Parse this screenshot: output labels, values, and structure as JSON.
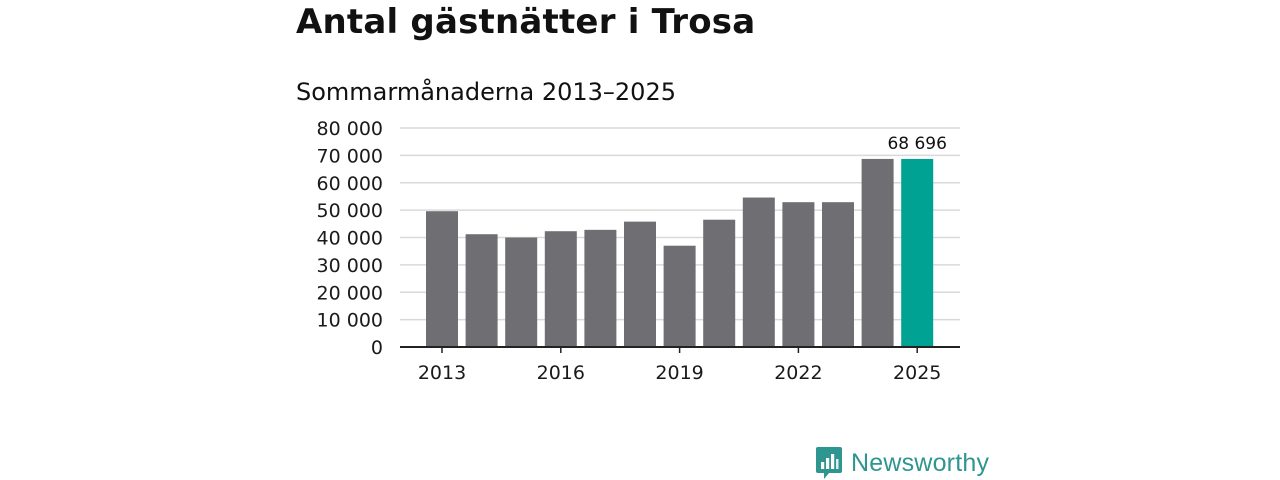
{
  "chart_data": {
    "type": "bar",
    "title": "Antal gästnätter i Trosa",
    "subtitle": "Sommarmånaderna 2013–2025",
    "categories": [
      "2013",
      "2014",
      "2015",
      "2016",
      "2017",
      "2018",
      "2019",
      "2020",
      "2021",
      "2022",
      "2023",
      "2024",
      "2025"
    ],
    "values": [
      49600,
      41200,
      40000,
      42300,
      42800,
      45800,
      37000,
      46500,
      54600,
      52900,
      52900,
      68700,
      68696
    ],
    "ylim": [
      0,
      80000
    ],
    "yticks": [
      0,
      10000,
      20000,
      30000,
      40000,
      50000,
      60000,
      70000,
      80000
    ],
    "ytick_labels": [
      "0",
      "10 000",
      "20 000",
      "30 000",
      "40 000",
      "50 000",
      "60 000",
      "70 000",
      "80 000"
    ],
    "xtick_labels": [
      "2013",
      "2016",
      "2019",
      "2022",
      "2025"
    ],
    "highlight_index": 12,
    "highlight_label": "68 696",
    "bar_color": "#6f6e73",
    "highlight_color": "#00a293",
    "grid": true,
    "xlabel": "",
    "ylabel": ""
  },
  "brand": {
    "name": "Newsworthy",
    "icon": "newsworthy-logo-icon",
    "color": "#2f9590"
  }
}
